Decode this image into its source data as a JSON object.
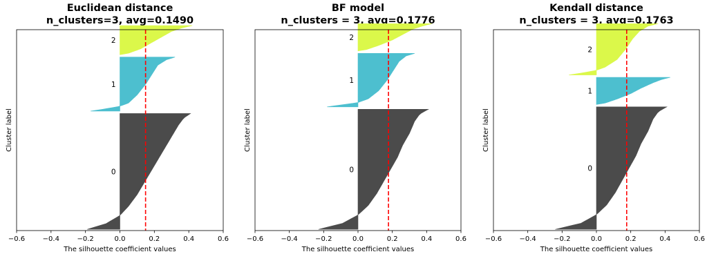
{
  "chart_data": [
    {
      "type": "area",
      "title_line1": "Euclidean distance",
      "title_line2": "n_clusters=3, avg=0.1490",
      "xlabel": "The silhouette coefficient values",
      "ylabel": "Cluster label",
      "xlim": [
        -0.6,
        0.6
      ],
      "xticks": [
        "−0.6",
        "−0.4",
        "−0.2",
        "0.0",
        "0.2",
        "0.4",
        "0.6"
      ],
      "avg": 0.149,
      "clusters": [
        {
          "label": "0",
          "color": "#4b4b4b",
          "size": 0.5766,
          "min": -0.19,
          "max": 0.41,
          "shape": [
            [
              0,
              0.41
            ],
            [
              0.04,
              0.37
            ],
            [
              0.1,
              0.34
            ],
            [
              0.2,
              0.3
            ],
            [
              0.3,
              0.26
            ],
            [
              0.4,
              0.22
            ],
            [
              0.5,
              0.18
            ],
            [
              0.6,
              0.14
            ],
            [
              0.7,
              0.1
            ],
            [
              0.8,
              0.05
            ],
            [
              0.88,
              0.0
            ],
            [
              0.95,
              -0.08
            ],
            [
              1,
              -0.19
            ]
          ]
        },
        {
          "label": "1",
          "color": "#4dbfcf",
          "size": 0.2689,
          "min": -0.17,
          "max": 0.32,
          "shape": [
            [
              0,
              0.32
            ],
            [
              0.05,
              0.27
            ],
            [
              0.15,
              0.22
            ],
            [
              0.3,
              0.19
            ],
            [
              0.5,
              0.15
            ],
            [
              0.7,
              0.1
            ],
            [
              0.85,
              0.05
            ],
            [
              0.91,
              0.0
            ],
            [
              0.96,
              -0.09
            ],
            [
              1,
              -0.17
            ]
          ]
        },
        {
          "label": "2",
          "color": "#dbf84a",
          "size": 0.1448,
          "min": 0.0,
          "max": 0.42,
          "shape": [
            [
              0,
              0.42
            ],
            [
              0.08,
              0.36
            ],
            [
              0.2,
              0.3
            ],
            [
              0.4,
              0.24
            ],
            [
              0.6,
              0.18
            ],
            [
              0.8,
              0.12
            ],
            [
              0.95,
              0.05
            ],
            [
              1,
              0.0
            ]
          ]
        }
      ]
    },
    {
      "type": "area",
      "title_line1": "BF model",
      "title_line2": "n_clusters = 3, avg=0.1776",
      "xlabel": "The silhouette coefficient values",
      "ylabel": "Cluster label",
      "xlim": [
        -0.6,
        0.6
      ],
      "xticks": [
        "−0.6",
        "−0.4",
        "−0.2",
        "0.0",
        "0.2",
        "0.4",
        "0.6"
      ],
      "avg": 0.1776,
      "clusters": [
        {
          "label": "0",
          "color": "#4b4b4b",
          "size": 0.5979,
          "min": -0.23,
          "max": 0.41,
          "shape": [
            [
              0,
              0.41
            ],
            [
              0.04,
              0.36
            ],
            [
              0.1,
              0.33
            ],
            [
              0.2,
              0.3
            ],
            [
              0.3,
              0.26
            ],
            [
              0.4,
              0.23
            ],
            [
              0.5,
              0.19
            ],
            [
              0.6,
              0.15
            ],
            [
              0.7,
              0.11
            ],
            [
              0.8,
              0.06
            ],
            [
              0.88,
              0.0
            ],
            [
              0.95,
              -0.09
            ],
            [
              1,
              -0.23
            ]
          ]
        },
        {
          "label": "1",
          "color": "#4dbfcf",
          "size": 0.2663,
          "min": -0.18,
          "max": 0.33,
          "shape": [
            [
              0,
              0.33
            ],
            [
              0.05,
              0.28
            ],
            [
              0.15,
              0.24
            ],
            [
              0.3,
              0.21
            ],
            [
              0.5,
              0.17
            ],
            [
              0.7,
              0.12
            ],
            [
              0.85,
              0.06
            ],
            [
              0.92,
              0.0
            ],
            [
              0.96,
              -0.09
            ],
            [
              1,
              -0.18
            ]
          ]
        },
        {
          "label": "2",
          "color": "#dbf84a",
          "size": 0.1358,
          "min": 0.0,
          "max": 0.43,
          "shape": [
            [
              0,
              0.43
            ],
            [
              0.08,
              0.38
            ],
            [
              0.2,
              0.32
            ],
            [
              0.4,
              0.26
            ],
            [
              0.6,
              0.2
            ],
            [
              0.8,
              0.12
            ],
            [
              0.95,
              0.05
            ],
            [
              1,
              0.0
            ]
          ]
        }
      ]
    },
    {
      "type": "area",
      "title_line1": "Kendall distance",
      "title_line2": "n_clusters = 3, avg=0.1763",
      "xlabel": "The silhouette coefficient values",
      "ylabel": "Cluster label",
      "xlim": [
        -0.6,
        0.6
      ],
      "xticks": [
        "−0.6",
        "−0.4",
        "−0.2",
        "0.0",
        "0.2",
        "0.4",
        "0.6"
      ],
      "avg": 0.1763,
      "clusters": [
        {
          "label": "0",
          "color": "#4b4b4b",
          "size": 0.6097,
          "min": -0.24,
          "max": 0.41,
          "shape": [
            [
              0,
              0.41
            ],
            [
              0.04,
              0.36
            ],
            [
              0.1,
              0.33
            ],
            [
              0.2,
              0.3
            ],
            [
              0.3,
              0.26
            ],
            [
              0.4,
              0.23
            ],
            [
              0.5,
              0.19
            ],
            [
              0.6,
              0.15
            ],
            [
              0.7,
              0.11
            ],
            [
              0.8,
              0.06
            ],
            [
              0.88,
              0.0
            ],
            [
              0.95,
              -0.09
            ],
            [
              1,
              -0.24
            ]
          ]
        },
        {
          "label": "1",
          "color": "#4dbfcf",
          "size": 0.1351,
          "min": 0.0,
          "max": 0.43,
          "shape": [
            [
              0,
              0.43
            ],
            [
              0.08,
              0.38
            ],
            [
              0.2,
              0.33
            ],
            [
              0.4,
              0.26
            ],
            [
              0.6,
              0.2
            ],
            [
              0.8,
              0.12
            ],
            [
              0.95,
              0.05
            ],
            [
              1,
              0.0
            ]
          ]
        },
        {
          "label": "2",
          "color": "#dbf84a",
          "size": 0.2552,
          "min": -0.16,
          "max": 0.36,
          "shape": [
            [
              0,
              0.36
            ],
            [
              0.05,
              0.3
            ],
            [
              0.15,
              0.25
            ],
            [
              0.3,
              0.21
            ],
            [
              0.5,
              0.17
            ],
            [
              0.7,
              0.12
            ],
            [
              0.85,
              0.05
            ],
            [
              0.91,
              0.0
            ],
            [
              0.96,
              -0.08
            ],
            [
              1,
              -0.16
            ]
          ]
        }
      ]
    }
  ]
}
